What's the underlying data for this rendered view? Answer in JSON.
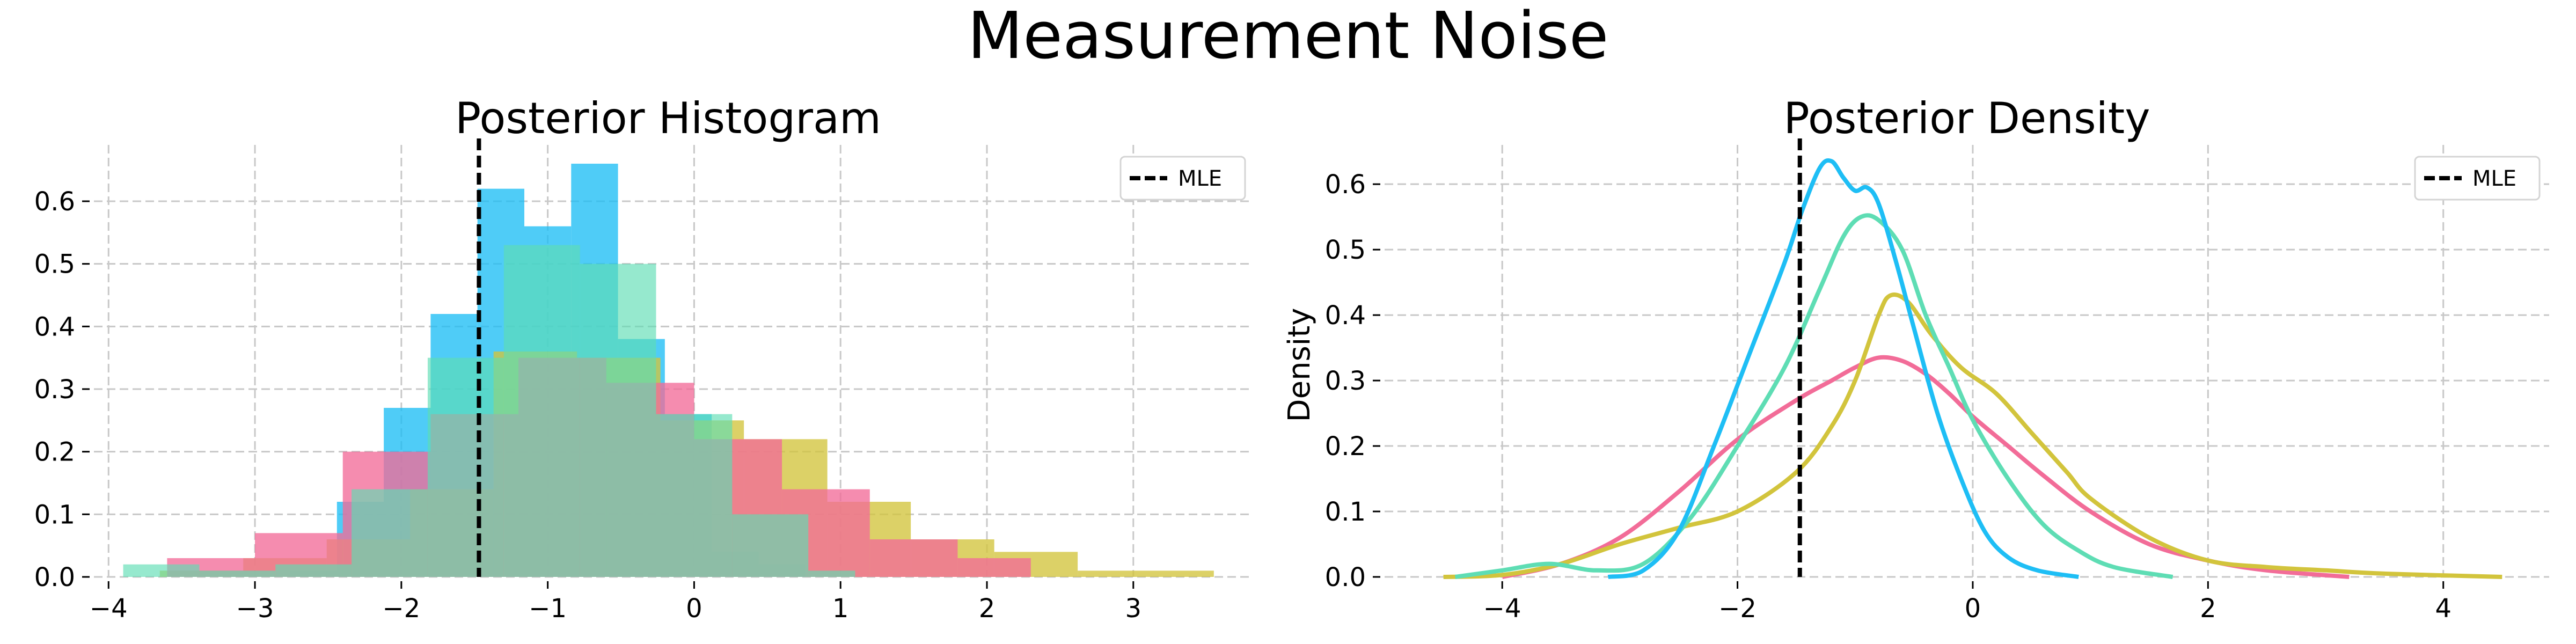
{
  "title": "Measurement Noise",
  "colors": {
    "blue": "#1EBEF5",
    "teal": "#5EDDB4",
    "olive": "#D2C43C",
    "pink": "#F26C98"
  },
  "chart_data": [
    {
      "type": "histogram",
      "title": "Posterior Histogram",
      "xlabel": "",
      "ylabel": "",
      "xlim": [
        -4.1,
        3.8
      ],
      "ylim": [
        0,
        0.69
      ],
      "xticks": [
        -4,
        -3,
        -2,
        -1,
        0,
        1,
        2,
        3
      ],
      "xtick_labels": [
        "−4",
        "−3",
        "−2",
        "−1",
        "0",
        "1",
        "2",
        "3"
      ],
      "yticks": [
        0.0,
        0.1,
        0.2,
        0.3,
        0.4,
        0.5,
        0.6
      ],
      "ytick_labels": [
        "0.0",
        "0.1",
        "0.2",
        "0.3",
        "0.4",
        "0.5",
        "0.6"
      ],
      "grid": true,
      "legend": {
        "position": "upper right",
        "entries": [
          "MLE"
        ]
      },
      "reference_line": {
        "name": "MLE",
        "x": -1.47,
        "style": "dashed",
        "color": "#000000"
      },
      "series": [
        {
          "color": "#1EBEF5",
          "opacity": 0.78,
          "bins": [
            {
              "x0": -2.76,
              "x1": -2.44,
              "y": 0.01
            },
            {
              "x0": -2.44,
              "x1": -2.12,
              "y": 0.12
            },
            {
              "x0": -2.12,
              "x1": -1.8,
              "y": 0.27
            },
            {
              "x0": -1.8,
              "x1": -1.48,
              "y": 0.42
            },
            {
              "x0": -1.48,
              "x1": -1.16,
              "y": 0.62
            },
            {
              "x0": -1.16,
              "x1": -0.84,
              "y": 0.56
            },
            {
              "x0": -0.84,
              "x1": -0.52,
              "y": 0.66
            },
            {
              "x0": -0.52,
              "x1": -0.2,
              "y": 0.38
            },
            {
              "x0": -0.2,
              "x1": 0.12,
              "y": 0.26
            },
            {
              "x0": 0.12,
              "x1": 0.44,
              "y": 0.04
            },
            {
              "x0": 0.44,
              "x1": 0.76,
              "y": 0.02
            }
          ]
        },
        {
          "color": "#D2C43C",
          "opacity": 0.78,
          "bins": [
            {
              "x0": -3.65,
              "x1": -3.08,
              "y": 0.01
            },
            {
              "x0": -3.08,
              "x1": -2.51,
              "y": 0.03
            },
            {
              "x0": -2.51,
              "x1": -1.94,
              "y": 0.06
            },
            {
              "x0": -1.94,
              "x1": -1.37,
              "y": 0.14
            },
            {
              "x0": -1.37,
              "x1": -0.8,
              "y": 0.36
            },
            {
              "x0": -0.8,
              "x1": -0.23,
              "y": 0.35
            },
            {
              "x0": -0.23,
              "x1": 0.34,
              "y": 0.25
            },
            {
              "x0": 0.34,
              "x1": 0.91,
              "y": 0.22
            },
            {
              "x0": 0.91,
              "x1": 1.48,
              "y": 0.12
            },
            {
              "x0": 1.48,
              "x1": 2.05,
              "y": 0.06
            },
            {
              "x0": 2.05,
              "x1": 2.62,
              "y": 0.04
            },
            {
              "x0": 2.62,
              "x1": 3.55,
              "y": 0.01
            }
          ]
        },
        {
          "color": "#F26C98",
          "opacity": 0.78,
          "bins": [
            {
              "x0": -3.6,
              "x1": -3.0,
              "y": 0.03
            },
            {
              "x0": -3.0,
              "x1": -2.4,
              "y": 0.07
            },
            {
              "x0": -2.4,
              "x1": -1.8,
              "y": 0.2
            },
            {
              "x0": -1.8,
              "x1": -1.2,
              "y": 0.26
            },
            {
              "x0": -1.2,
              "x1": -0.6,
              "y": 0.35
            },
            {
              "x0": -0.6,
              "x1": 0.0,
              "y": 0.31
            },
            {
              "x0": 0.0,
              "x1": 0.6,
              "y": 0.22
            },
            {
              "x0": 0.6,
              "x1": 1.2,
              "y": 0.14
            },
            {
              "x0": 1.2,
              "x1": 1.8,
              "y": 0.06
            },
            {
              "x0": 1.8,
              "x1": 2.3,
              "y": 0.03
            }
          ]
        },
        {
          "color": "#5EDDB4",
          "opacity": 0.65,
          "bins": [
            {
              "x0": -3.9,
              "x1": -3.38,
              "y": 0.02
            },
            {
              "x0": -3.38,
              "x1": -2.86,
              "y": 0.01
            },
            {
              "x0": -2.86,
              "x1": -2.34,
              "y": 0.02
            },
            {
              "x0": -2.34,
              "x1": -1.82,
              "y": 0.14
            },
            {
              "x0": -1.82,
              "x1": -1.3,
              "y": 0.35
            },
            {
              "x0": -1.3,
              "x1": -0.78,
              "y": 0.53
            },
            {
              "x0": -0.78,
              "x1": -0.26,
              "y": 0.5
            },
            {
              "x0": -0.26,
              "x1": 0.26,
              "y": 0.26
            },
            {
              "x0": 0.26,
              "x1": 0.78,
              "y": 0.1
            },
            {
              "x0": 0.78,
              "x1": 1.1,
              "y": 0.01
            }
          ]
        }
      ]
    },
    {
      "type": "line",
      "title": "Posterior Density",
      "xlabel": "",
      "ylabel": "Density",
      "xlim": [
        -5.0,
        4.9
      ],
      "ylim": [
        0,
        0.66
      ],
      "xticks": [
        -4,
        -2,
        0,
        2,
        4
      ],
      "xtick_labels": [
        "−4",
        "−2",
        "0",
        "2",
        "4"
      ],
      "yticks": [
        0.0,
        0.1,
        0.2,
        0.3,
        0.4,
        0.5,
        0.6
      ],
      "ytick_labels": [
        "0.0",
        "0.1",
        "0.2",
        "0.3",
        "0.4",
        "0.5",
        "0.6"
      ],
      "grid": true,
      "legend": {
        "position": "upper right",
        "entries": [
          "MLE"
        ]
      },
      "reference_line": {
        "name": "MLE",
        "x": -1.47,
        "style": "dashed",
        "color": "#000000"
      },
      "series": [
        {
          "color": "#F26C98",
          "points": [
            [
              -4.0,
              0.0
            ],
            [
              -3.5,
              0.02
            ],
            [
              -3.0,
              0.06
            ],
            [
              -2.5,
              0.13
            ],
            [
              -2.0,
              0.21
            ],
            [
              -1.5,
              0.27
            ],
            [
              -1.2,
              0.3
            ],
            [
              -1.0,
              0.32
            ],
            [
              -0.8,
              0.335
            ],
            [
              -0.6,
              0.33
            ],
            [
              -0.4,
              0.31
            ],
            [
              -0.2,
              0.28
            ],
            [
              0.0,
              0.245
            ],
            [
              0.3,
              0.2
            ],
            [
              0.6,
              0.155
            ],
            [
              1.0,
              0.1
            ],
            [
              1.5,
              0.05
            ],
            [
              2.0,
              0.025
            ],
            [
              2.5,
              0.01
            ],
            [
              3.2,
              0.0
            ]
          ]
        },
        {
          "color": "#D2C43C",
          "points": [
            [
              -4.5,
              0.0
            ],
            [
              -4.0,
              0.003
            ],
            [
              -3.5,
              0.02
            ],
            [
              -3.0,
              0.05
            ],
            [
              -2.5,
              0.075
            ],
            [
              -2.0,
              0.1
            ],
            [
              -1.5,
              0.16
            ],
            [
              -1.2,
              0.23
            ],
            [
              -1.0,
              0.3
            ],
            [
              -0.8,
              0.4
            ],
            [
              -0.7,
              0.43
            ],
            [
              -0.55,
              0.42
            ],
            [
              -0.35,
              0.37
            ],
            [
              -0.1,
              0.32
            ],
            [
              0.2,
              0.28
            ],
            [
              0.5,
              0.22
            ],
            [
              0.8,
              0.16
            ],
            [
              1.0,
              0.12
            ],
            [
              1.5,
              0.06
            ],
            [
              2.0,
              0.025
            ],
            [
              2.5,
              0.015
            ],
            [
              3.0,
              0.01
            ],
            [
              3.5,
              0.005
            ],
            [
              4.5,
              0.0
            ]
          ]
        },
        {
          "color": "#5EDDB4",
          "points": [
            [
              -4.4,
              0.0
            ],
            [
              -4.0,
              0.01
            ],
            [
              -3.6,
              0.02
            ],
            [
              -3.2,
              0.01
            ],
            [
              -2.8,
              0.02
            ],
            [
              -2.4,
              0.09
            ],
            [
              -2.0,
              0.2
            ],
            [
              -1.6,
              0.32
            ],
            [
              -1.3,
              0.44
            ],
            [
              -1.1,
              0.52
            ],
            [
              -0.95,
              0.55
            ],
            [
              -0.8,
              0.545
            ],
            [
              -0.6,
              0.5
            ],
            [
              -0.4,
              0.4
            ],
            [
              -0.2,
              0.32
            ],
            [
              0.0,
              0.24
            ],
            [
              0.3,
              0.15
            ],
            [
              0.6,
              0.08
            ],
            [
              0.9,
              0.04
            ],
            [
              1.2,
              0.015
            ],
            [
              1.7,
              0.0
            ]
          ]
        },
        {
          "color": "#1EBEF5",
          "points": [
            [
              -3.1,
              0.0
            ],
            [
              -2.8,
              0.01
            ],
            [
              -2.5,
              0.07
            ],
            [
              -2.2,
              0.2
            ],
            [
              -1.9,
              0.34
            ],
            [
              -1.6,
              0.48
            ],
            [
              -1.45,
              0.56
            ],
            [
              -1.3,
              0.625
            ],
            [
              -1.2,
              0.635
            ],
            [
              -1.1,
              0.61
            ],
            [
              -1.0,
              0.59
            ],
            [
              -0.9,
              0.595
            ],
            [
              -0.8,
              0.57
            ],
            [
              -0.65,
              0.48
            ],
            [
              -0.5,
              0.38
            ],
            [
              -0.3,
              0.25
            ],
            [
              -0.1,
              0.15
            ],
            [
              0.1,
              0.07
            ],
            [
              0.3,
              0.03
            ],
            [
              0.55,
              0.01
            ],
            [
              0.9,
              0.0
            ]
          ]
        }
      ]
    }
  ]
}
